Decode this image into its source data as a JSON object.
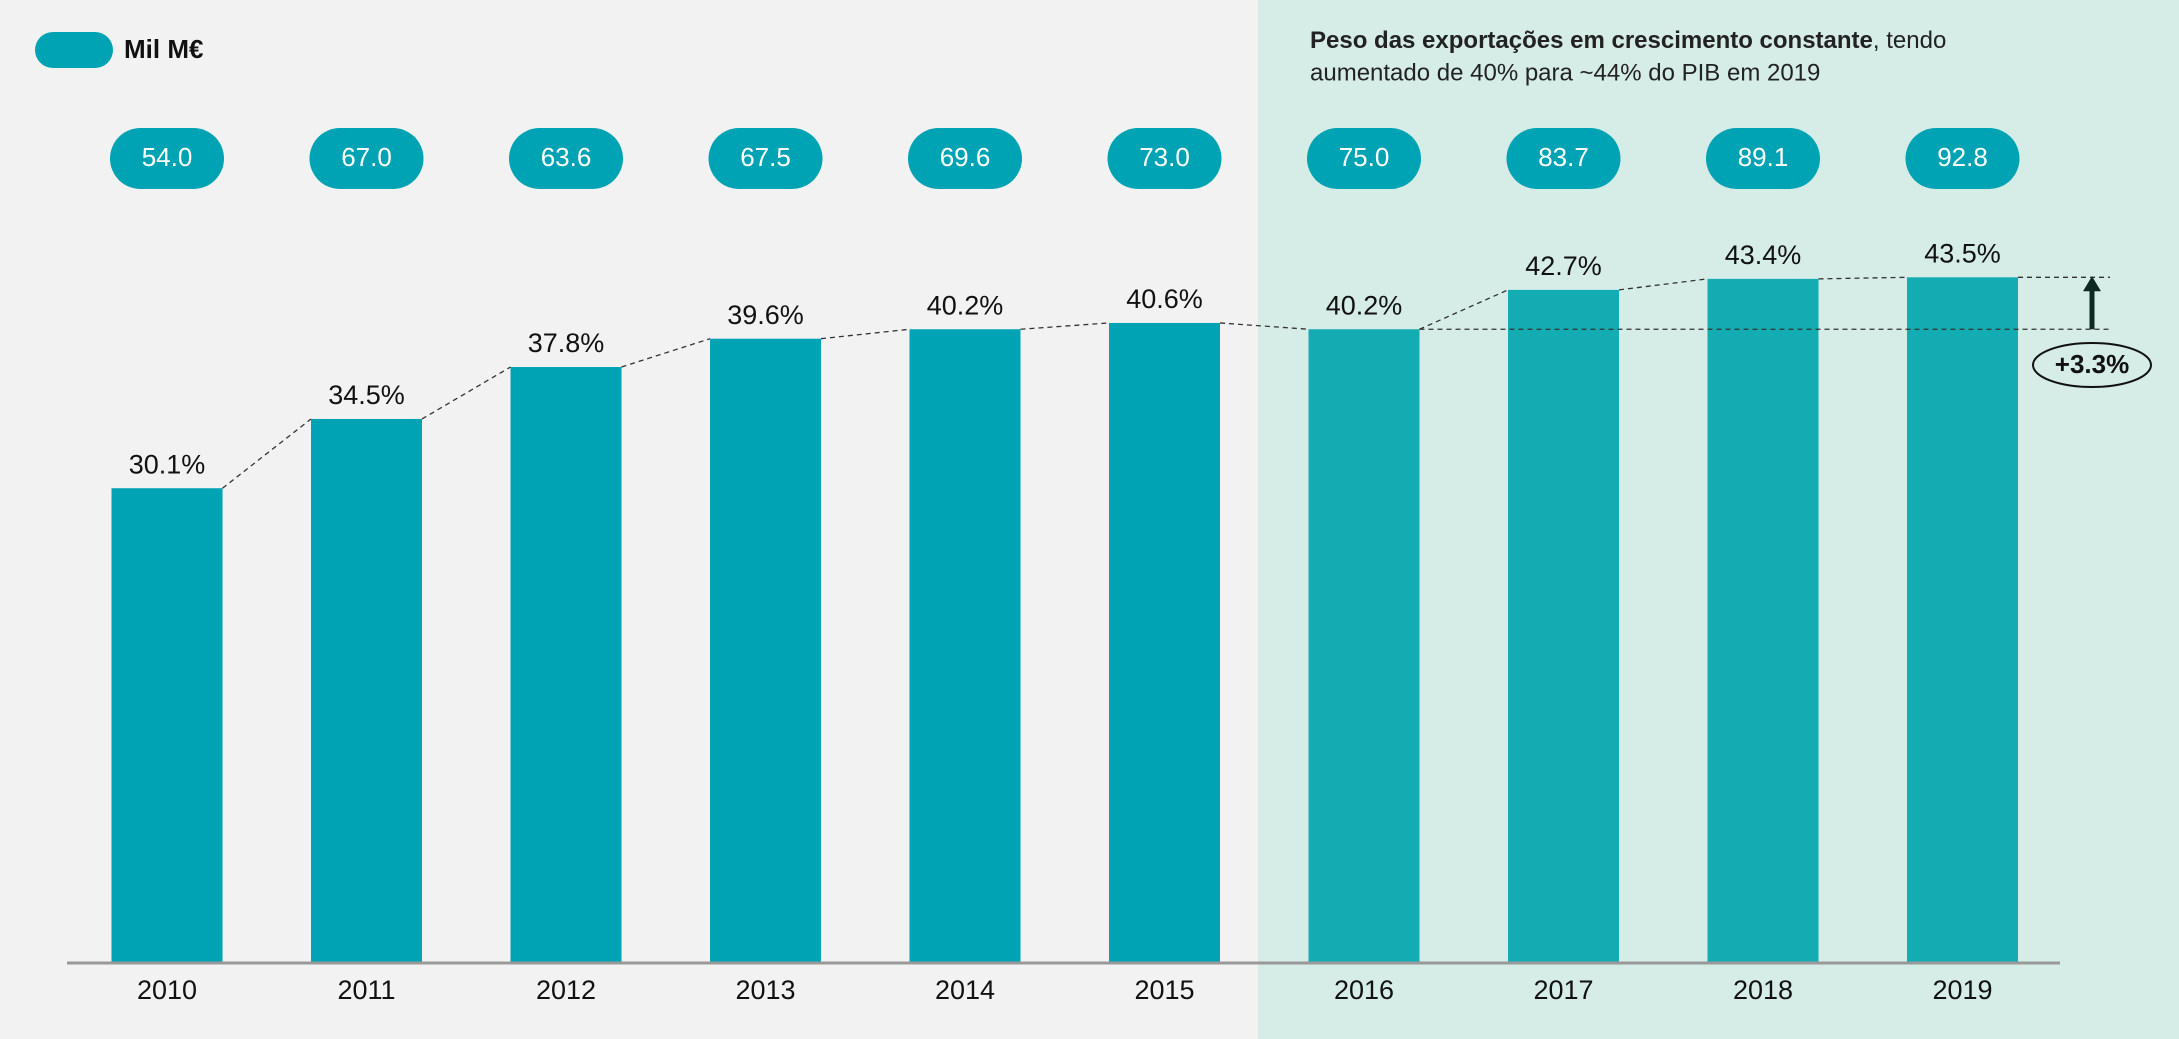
{
  "chart_data": {
    "type": "bar",
    "categories": [
      "2010",
      "2011",
      "2012",
      "2013",
      "2014",
      "2015",
      "2016",
      "2017",
      "2018",
      "2019"
    ],
    "series": [
      {
        "name": "Mil M€",
        "color": "#00a3b4",
        "values": [
          54.0,
          67.0,
          63.6,
          67.5,
          69.6,
          73.0,
          75.0,
          83.7,
          89.1,
          92.8
        ],
        "value_labels": [
          "54.0",
          "67.0",
          "63.6",
          "67.5",
          "69.6",
          "73.0",
          "75.0",
          "83.7",
          "89.1",
          "92.8"
        ]
      },
      {
        "color": "#00a3b4",
        "values": [
          30.1,
          34.5,
          37.8,
          39.6,
          40.2,
          40.6,
          40.2,
          42.7,
          43.4,
          43.5
        ],
        "value_labels": [
          "30.1%",
          "34.5%",
          "37.8%",
          "39.6%",
          "40.2%",
          "40.6%",
          "40.2%",
          "42.7%",
          "43.4%",
          "43.5%"
        ]
      }
    ],
    "annotation": {
      "bold": "Peso das exportações em crescimento constante",
      "line1": ", tendo",
      "line2": "aumentado de 40% para ~44% do PIB em 2019"
    },
    "change_label": "+3.3%"
  }
}
